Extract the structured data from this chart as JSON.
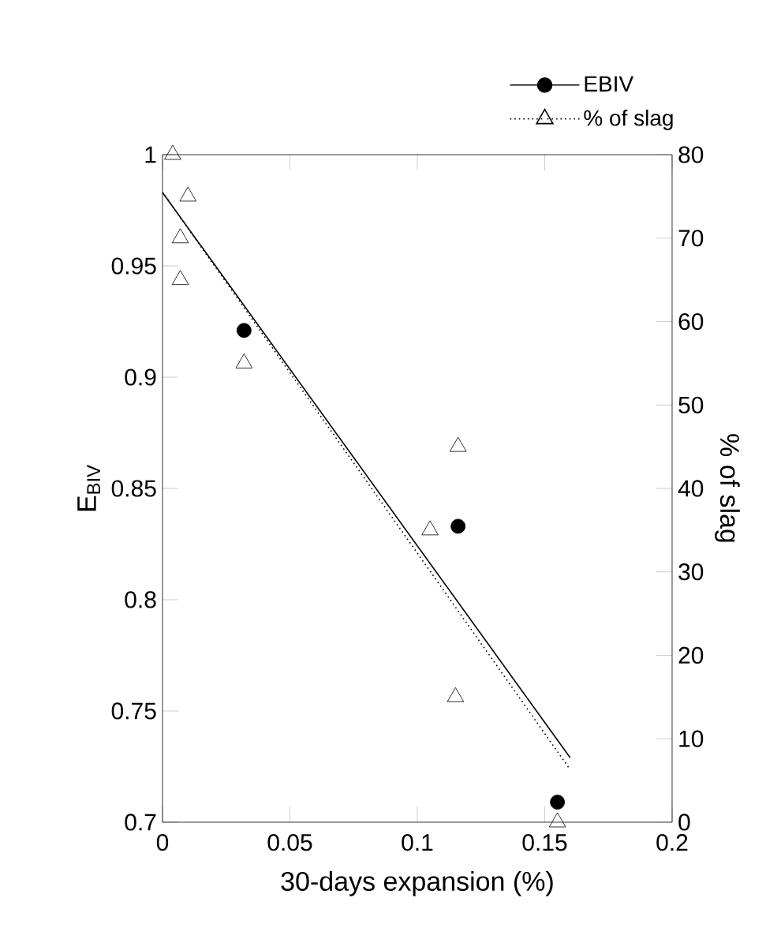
{
  "chart_data": {
    "type": "scatter",
    "xlabel": "30-days expansion (%)",
    "ylabel": "E$_{BIV}$",
    "y2label": "% of slag",
    "xlim": [
      0,
      0.2
    ],
    "xticks": [
      0,
      0.05,
      0.1,
      0.15,
      0.2
    ],
    "ylim": [
      0.7,
      1
    ],
    "yticks": [
      0.7,
      0.75,
      0.8,
      0.85,
      0.9,
      0.95,
      1
    ],
    "y2lim": [
      0,
      80
    ],
    "y2ticks": [
      0,
      10,
      20,
      30,
      40,
      50,
      60,
      70,
      80
    ],
    "grid": false,
    "legend": "top right",
    "series": [
      {
        "name": "EBIV",
        "marker": "circle",
        "color": "#000000",
        "x": [
          0.032,
          0.116,
          0.155
        ],
        "values": [
          0.921,
          0.833,
          0.709
        ]
      },
      {
        "type": "line",
        "marker": "none",
        "line_style": "solid",
        "color": "#000000",
        "x": [
          0,
          0.16
        ],
        "values": [
          0.983,
          0.729
        ]
      },
      {
        "name": "% of slag",
        "marker": "triangle",
        "axis": "y2",
        "color": "#000000",
        "x": [
          0.004,
          0.01,
          0.007,
          0.007,
          0.032,
          0.116,
          0.105,
          0.115,
          0.155
        ],
        "values": [
          80,
          75,
          70,
          65,
          55,
          45,
          35,
          15,
          0
        ]
      },
      {
        "type": "line",
        "marker": "none",
        "line_style": "dotted",
        "axis": "y2",
        "color": "#000000",
        "x": [
          0,
          0.16
        ],
        "values": [
          75.5,
          6.3
        ]
      }
    ]
  }
}
